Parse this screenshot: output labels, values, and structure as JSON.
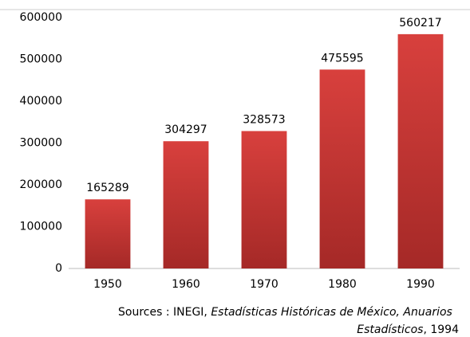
{
  "chart_data": {
    "type": "bar",
    "categories": [
      "1950",
      "1960",
      "1970",
      "1980",
      "1990"
    ],
    "values": [
      165289,
      304297,
      328573,
      475595,
      560217
    ],
    "color": "#c83532",
    "ylim": [
      0,
      600000
    ],
    "yticks": [
      0,
      100000,
      200000,
      300000,
      400000,
      500000,
      600000
    ],
    "grid": false,
    "source_lines": [
      [
        "Sources : INEGI, ",
        "Estadísticas Históricas de México, Anuarios"
      ],
      [
        "Estadísticos",
        ", 1994"
      ]
    ]
  }
}
